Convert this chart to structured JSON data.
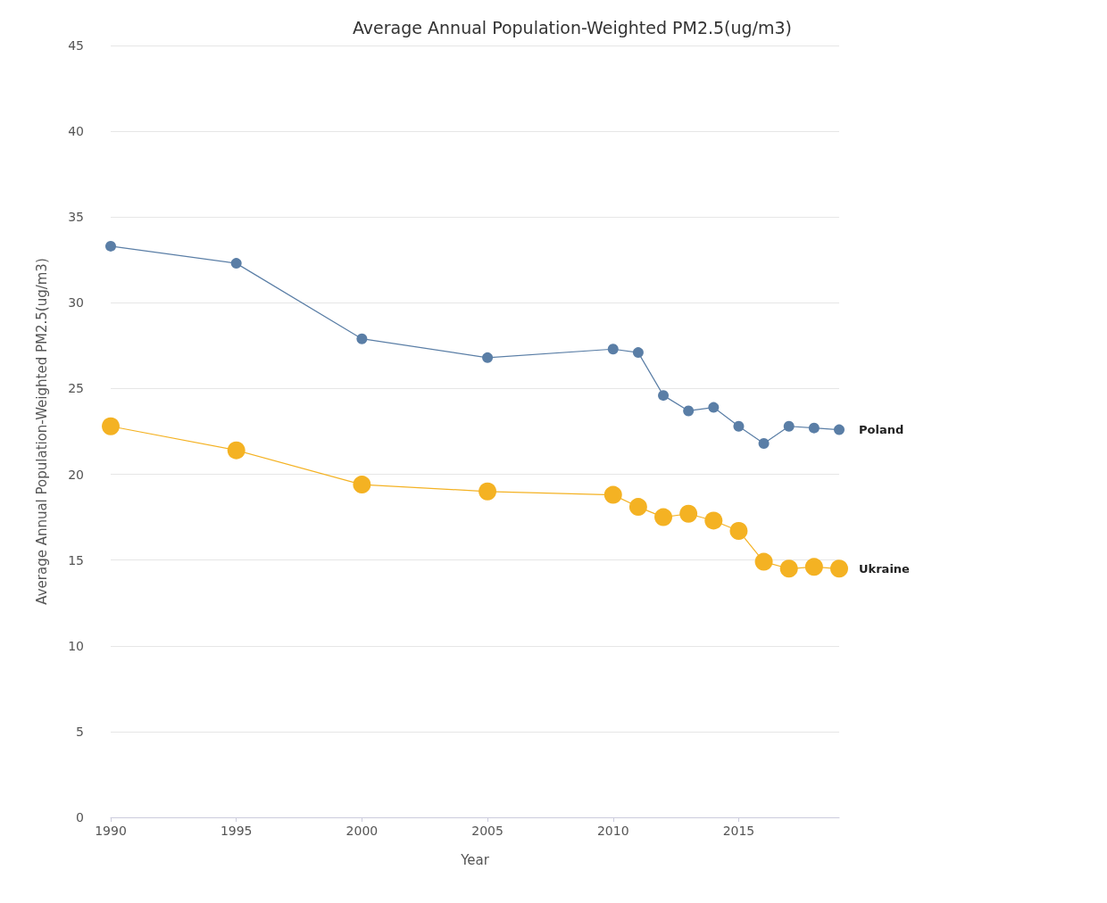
{
  "chart_data": {
    "type": "line",
    "title": "Average Annual Population-Weighted PM2.5(ug/m3)",
    "xlabel": "Year",
    "ylabel": "Average Annual Population-Weighted PM2.5(ug/m3)",
    "x": [
      1990,
      1995,
      2000,
      2005,
      2010,
      2011,
      2012,
      2013,
      2014,
      2015,
      2016,
      2017,
      2018,
      2019
    ],
    "series": [
      {
        "name": "Poland",
        "color": "#5a7ea6",
        "values": [
          33.3,
          32.3,
          27.9,
          26.8,
          27.3,
          27.1,
          24.6,
          23.7,
          23.9,
          22.8,
          21.8,
          22.8,
          22.7,
          22.6
        ]
      },
      {
        "name": "Ukraine",
        "color": "#f4b223",
        "values": [
          22.8,
          21.4,
          19.4,
          19.0,
          18.8,
          18.1,
          17.5,
          17.7,
          17.3,
          16.7,
          14.9,
          14.5,
          14.6,
          14.5
        ]
      }
    ],
    "xlim": [
      1990,
      2019
    ],
    "xticks": [
      1990,
      1995,
      2000,
      2005,
      2010,
      2015
    ],
    "ylim": [
      0,
      45
    ],
    "yticks": [
      0,
      5,
      10,
      15,
      20,
      25,
      30,
      35,
      40,
      45
    ],
    "grid": "y",
    "legend": false,
    "marker": "circle",
    "line_style": "solid"
  }
}
